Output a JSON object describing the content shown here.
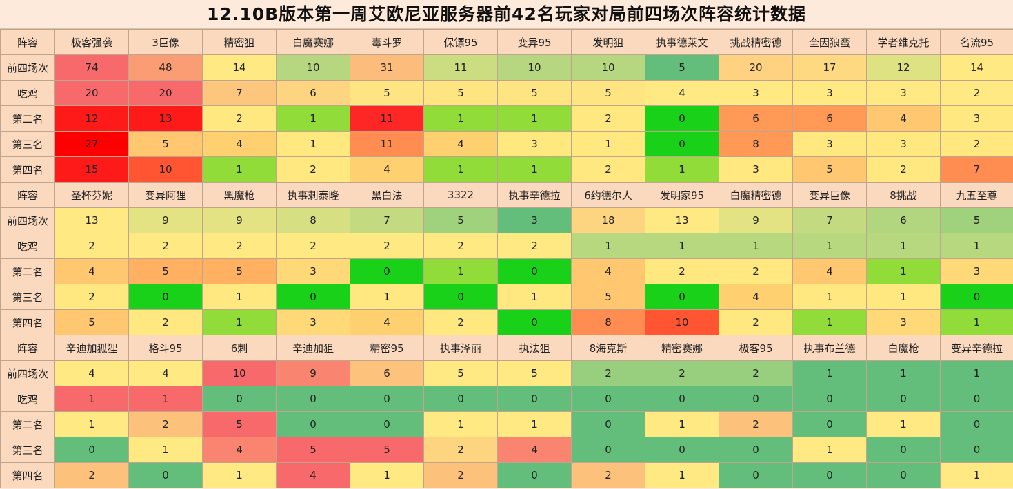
{
  "title": "12.10B版本第一周艾欧尼亚服务器前42名玩家对局前四场次阵容统计数据",
  "row_labels": [
    "前四场次",
    "吃鸡",
    "第二名",
    "第三名",
    "第四名"
  ],
  "header_label": "阵容",
  "blocks": [
    {
      "comps": [
        "极客强袭",
        "3巨像",
        "精密狙",
        "白魔赛娜",
        "毒斗罗",
        "保镖95",
        "变异95",
        "发明狙",
        "执事德莱文",
        "挑战精密德",
        "奎因狼蛮",
        "学者维克托",
        "名流95"
      ],
      "rows": [
        [
          74,
          48,
          14,
          10,
          31,
          11,
          10,
          10,
          5,
          20,
          17,
          12,
          14
        ],
        [
          20,
          20,
          7,
          6,
          5,
          5,
          5,
          5,
          4,
          3,
          3,
          3,
          2
        ],
        [
          12,
          13,
          2,
          1,
          11,
          1,
          1,
          2,
          0,
          6,
          6,
          4,
          3
        ],
        [
          27,
          5,
          4,
          1,
          11,
          4,
          3,
          1,
          0,
          8,
          3,
          3,
          2
        ],
        [
          15,
          10,
          1,
          2,
          4,
          1,
          1,
          2,
          1,
          3,
          5,
          2,
          7
        ]
      ],
      "colors": [
        [
          "#f8696b",
          "#fa9d75",
          "#fee983",
          "#b6d77f",
          "#fcbc7b",
          "#cbdc81",
          "#b6d77f",
          "#b6d77f",
          "#63be7b",
          "#fed280",
          "#fed981",
          "#dfe283",
          "#fee983"
        ],
        [
          "#f8696b",
          "#f8696b",
          "#fdc67d",
          "#fdd580",
          "#fee582",
          "#fee582",
          "#fee582",
          "#fee582",
          "#fee983",
          "#fee983",
          "#fee983",
          "#fee983",
          "#fee983"
        ],
        [
          "#ff1a1a",
          "#ff1a1a",
          "#ffe880",
          "#92dc3a",
          "#ff2626",
          "#92dc3a",
          "#92dc3a",
          "#ffe880",
          "#1ad11a",
          "#ff9955",
          "#ff9955",
          "#ffc870",
          "#ffe880"
        ],
        [
          "#ff0000",
          "#ffc870",
          "#ffd070",
          "#ffe880",
          "#ff8c50",
          "#ffd070",
          "#ffe880",
          "#ffe880",
          "#1ad11a",
          "#ff9955",
          "#ffe880",
          "#ffe880",
          "#ffe880"
        ],
        [
          "#ff1a1a",
          "#ff5533",
          "#92dc3a",
          "#ffe880",
          "#ffd070",
          "#92dc3a",
          "#92dc3a",
          "#ffe880",
          "#92dc3a",
          "#ffe880",
          "#ffc870",
          "#ffe880",
          "#ff8c50"
        ]
      ]
    },
    {
      "comps": [
        "圣杯芬妮",
        "变异阿狸",
        "黑魔枪",
        "执事刺泰隆",
        "黑白法",
        "3322",
        "执事辛德拉",
        "6约德尔人",
        "发明家95",
        "白魔精密德",
        "变异巨像",
        "8挑战",
        "九五至尊"
      ],
      "rows": [
        [
          13,
          9,
          9,
          8,
          7,
          5,
          3,
          18,
          13,
          9,
          7,
          6,
          5
        ],
        [
          2,
          2,
          2,
          2,
          2,
          2,
          2,
          1,
          1,
          1,
          1,
          1,
          1
        ],
        [
          4,
          5,
          5,
          3,
          0,
          1,
          0,
          4,
          2,
          2,
          4,
          1,
          3
        ],
        [
          2,
          0,
          1,
          0,
          1,
          0,
          1,
          5,
          0,
          4,
          1,
          1,
          0
        ],
        [
          5,
          2,
          1,
          3,
          4,
          2,
          0,
          8,
          10,
          2,
          1,
          3,
          1
        ]
      ],
      "colors": [
        [
          "#fee983",
          "#e4e383",
          "#e4e383",
          "#d6df82",
          "#c3da80",
          "#a0d27e",
          "#63be7b",
          "#fdd580",
          "#fee983",
          "#e4e383",
          "#c3da80",
          "#b2d57f",
          "#a0d27e"
        ],
        [
          "#fee983",
          "#fee983",
          "#fee983",
          "#fee983",
          "#fee983",
          "#fee983",
          "#fee983",
          "#b8d87f",
          "#b8d87f",
          "#b8d87f",
          "#b8d87f",
          "#b8d87f",
          "#b8d87f"
        ],
        [
          "#ffc870",
          "#ffb060",
          "#ffb060",
          "#ffd878",
          "#1ad11a",
          "#92dc3a",
          "#1ad11a",
          "#ffc870",
          "#ffe880",
          "#ffe880",
          "#ffc870",
          "#92dc3a",
          "#ffd878"
        ],
        [
          "#ffe880",
          "#1ad11a",
          "#ffe880",
          "#1ad11a",
          "#ffe880",
          "#1ad11a",
          "#ffe880",
          "#ffc870",
          "#1ad11a",
          "#ffd070",
          "#ffe880",
          "#ffe880",
          "#1ad11a"
        ],
        [
          "#ffc870",
          "#ffe880",
          "#92dc3a",
          "#ffd878",
          "#ffd070",
          "#ffe880",
          "#1ad11a",
          "#ff8c50",
          "#ff5533",
          "#ffe880",
          "#92dc3a",
          "#ffd878",
          "#92dc3a"
        ]
      ]
    },
    {
      "comps": [
        "辛迪加狐狸",
        "格斗95",
        "6刺",
        "辛迪加狙",
        "精密95",
        "执事泽丽",
        "执法狙",
        "8海克斯",
        "精密赛娜",
        "极客95",
        "执事布兰德",
        "白魔枪",
        "变异辛德拉"
      ],
      "rows": [
        [
          4,
          4,
          10,
          9,
          6,
          5,
          5,
          2,
          2,
          2,
          1,
          1,
          1
        ],
        [
          1,
          1,
          0,
          0,
          0,
          0,
          0,
          0,
          0,
          0,
          0,
          0,
          0
        ],
        [
          1,
          2,
          5,
          0,
          0,
          1,
          1,
          0,
          1,
          2,
          0,
          1,
          0
        ],
        [
          0,
          1,
          4,
          5,
          5,
          2,
          4,
          0,
          0,
          0,
          1,
          0,
          0
        ],
        [
          2,
          0,
          1,
          4,
          1,
          2,
          0,
          2,
          1,
          0,
          0,
          0,
          1
        ]
      ],
      "colors": [
        [
          "#fee983",
          "#fee983",
          "#f8696b",
          "#f98570",
          "#fdc27c",
          "#fee983",
          "#fee983",
          "#98cf7e",
          "#98cf7e",
          "#98cf7e",
          "#63be7b",
          "#63be7b",
          "#63be7b"
        ],
        [
          "#f8696b",
          "#f8696b",
          "#63be7b",
          "#63be7b",
          "#63be7b",
          "#63be7b",
          "#63be7b",
          "#63be7b",
          "#63be7b",
          "#63be7b",
          "#63be7b",
          "#63be7b",
          "#63be7b"
        ],
        [
          "#fee983",
          "#fcc27c",
          "#f8696b",
          "#63be7b",
          "#63be7b",
          "#fee983",
          "#fee983",
          "#63be7b",
          "#fee983",
          "#fcc27c",
          "#63be7b",
          "#fee983",
          "#63be7b"
        ],
        [
          "#63be7b",
          "#fee983",
          "#f98570",
          "#f8696b",
          "#f8696b",
          "#fdd580",
          "#f98570",
          "#63be7b",
          "#63be7b",
          "#63be7b",
          "#fee983",
          "#63be7b",
          "#63be7b"
        ],
        [
          "#fcc27c",
          "#63be7b",
          "#fee983",
          "#f8696b",
          "#fee983",
          "#fcc27c",
          "#63be7b",
          "#fcc27c",
          "#fee983",
          "#63be7b",
          "#63be7b",
          "#63be7b",
          "#fee983"
        ]
      ]
    }
  ]
}
